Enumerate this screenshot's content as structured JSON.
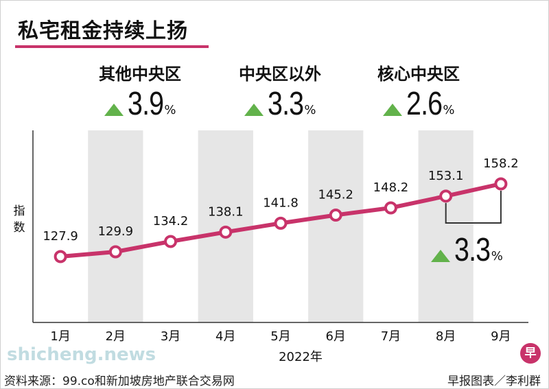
{
  "title": "私宅租金持续上扬",
  "regions": [
    {
      "name": "其他中央区",
      "change": "3.9",
      "unit": "%"
    },
    {
      "name": "中央区以外",
      "change": "3.3",
      "unit": "%"
    },
    {
      "name": "核心中央区",
      "change": "2.6",
      "unit": "%"
    }
  ],
  "highlight": {
    "change": "3.3",
    "unit": "%"
  },
  "colors": {
    "line": "#c8336a",
    "up_arrow": "#62b24b",
    "band": "#e6e6e6"
  },
  "chart_data": {
    "type": "line",
    "categories": [
      "1月",
      "2月",
      "3月",
      "4月",
      "5月",
      "6月",
      "7月",
      "8月",
      "9月"
    ],
    "values": [
      127.9,
      129.9,
      134.2,
      138.1,
      141.8,
      145.2,
      148.2,
      153.1,
      158.2
    ],
    "data_labels": [
      "127.9",
      "129.9",
      "134.2",
      "138.1",
      "141.8",
      "145.2",
      "148.2",
      "153.1",
      "158.2"
    ],
    "xlabel": "2022年",
    "ylabel": "指数"
  },
  "footer": {
    "source": "资料来源：99.co和新加坡房地产联合交易网",
    "credit": "早报图表／李利群"
  },
  "watermark": "shicheng.news",
  "logo_text": "早"
}
